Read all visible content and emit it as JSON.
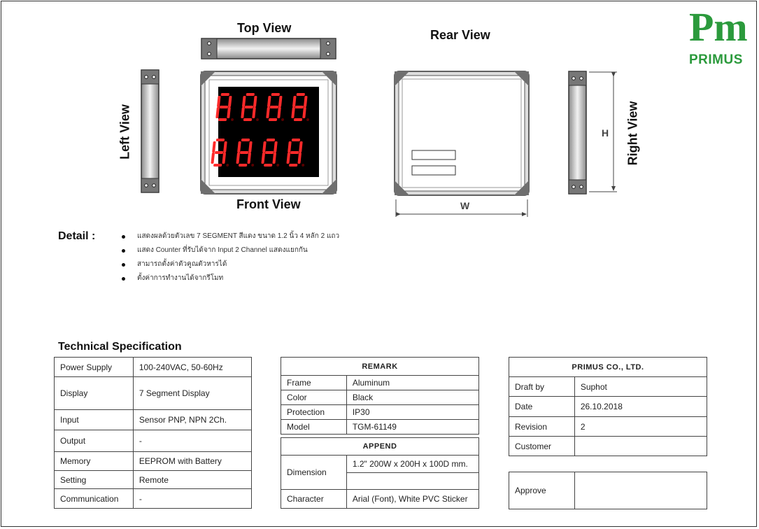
{
  "logo": {
    "mark": "Pm",
    "registered": "®",
    "name": "PRIMUS"
  },
  "views": {
    "top": "Top View",
    "front": "Front View",
    "left": "Left View",
    "rear": "Rear View",
    "right": "Right View",
    "dim_h": "H",
    "dim_w": "W"
  },
  "display_digits": [
    "8",
    "8",
    "8",
    "8",
    "8",
    "8",
    "8",
    "8"
  ],
  "detail": {
    "title": "Detail :",
    "items": [
      "แสดงผลด้วยตัวเลข 7 SEGMENT สีแดง ขนาด 1.2 นิ้ว 4 หลัก 2 แถว",
      "แสดง Counter ที่รับได้จาก Input 2 Channel แสดงแยกกัน",
      "สามารถตั้งค่าตัวคูณตัวหารได้",
      "ตั้งค่าการทำงานได้จากรีโมท"
    ]
  },
  "tech_spec": {
    "title": "Technical Specification",
    "rows": [
      {
        "label": "Power Supply",
        "value": "100-240VAC, 50-60Hz"
      },
      {
        "label": "Display",
        "value": "7 Segment Display"
      },
      {
        "label": "Input",
        "value": "Sensor PNP, NPN   2Ch."
      },
      {
        "label": "Output",
        "value": "-"
      },
      {
        "label": "Memory",
        "value": "EEPROM with Battery"
      },
      {
        "label": "Setting",
        "value": "Remote"
      },
      {
        "label": "Communication",
        "value": "-"
      }
    ]
  },
  "remark": {
    "title": "REMARK",
    "rows": [
      {
        "label": "Frame",
        "value": "Aluminum"
      },
      {
        "label": "Color",
        "value": "Black"
      },
      {
        "label": "Protection",
        "value": "IP30"
      },
      {
        "label": "Model",
        "value": "TGM-61149"
      }
    ]
  },
  "append": {
    "title": "APPEND",
    "dimension_label": "Dimension",
    "dimension_value": "1.2\"  200W x 200H x 100D mm.",
    "dimension_extra": "",
    "character_label": "Character",
    "character_value": "Arial (Font), White PVC Sticker"
  },
  "company": {
    "title": "PRIMUS CO., LTD.",
    "rows": [
      {
        "label": "Draft by",
        "value": "Suphot"
      },
      {
        "label": "Date",
        "value": "26.10.2018"
      },
      {
        "label": "Revision",
        "value": "2"
      },
      {
        "label": "Customer",
        "value": ""
      }
    ]
  },
  "approve": {
    "label": "Approve",
    "value": ""
  },
  "colors": {
    "segment_red": "#ff2a2a",
    "panel_black": "#000000",
    "logo_green": "#2b9a3c",
    "frame_grey": "#6f6f6f"
  }
}
